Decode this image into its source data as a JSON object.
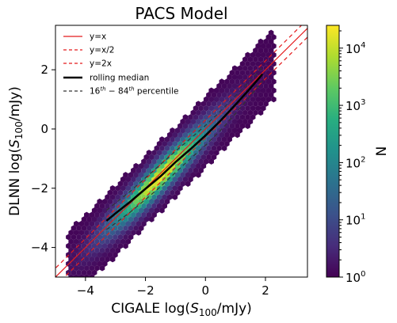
{
  "chart_data": {
    "type": "hexbin",
    "title": "PACS Model",
    "xlabel": "CIGALE log(S100/mJy)",
    "ylabel": "DLNN log(S100/mJy)",
    "xlim": [
      -5.0,
      3.4
    ],
    "ylim": [
      -5.0,
      3.5
    ],
    "x_ticks": [
      -4,
      -2,
      0,
      2
    ],
    "x_tick_labels": [
      "−4",
      "−2",
      "0",
      "2"
    ],
    "y_ticks": [
      -4,
      -2,
      0,
      2
    ],
    "y_tick_labels": [
      "−4",
      "−2",
      "0",
      "2"
    ],
    "grid": false,
    "legend": {
      "location": "upper-left",
      "entries": [
        {
          "label": "y=x",
          "style": "solid",
          "color": "#e41a1c"
        },
        {
          "label": "y=x/2",
          "style": "dashed",
          "color": "#e41a1c"
        },
        {
          "label": "y=2x",
          "style": "dashed",
          "color": "#e41a1c"
        },
        {
          "label": "rolling median",
          "style": "solid-thick",
          "color": "#000000"
        },
        {
          "label": "16th − 84th percentile",
          "style": "dashed",
          "color": "#000000"
        }
      ]
    },
    "reference_lines": [
      {
        "name": "y=x",
        "slope": 1.0,
        "intercept": 0.0
      },
      {
        "name": "y=x/2",
        "slope": 1.0,
        "intercept": -0.30103
      },
      {
        "name": "y=2x",
        "slope": 1.0,
        "intercept": 0.30103
      }
    ],
    "rolling_median": {
      "x": [
        -3.3,
        -3.0,
        -2.5,
        -2.0,
        -1.5,
        -1.0,
        -0.5,
        0.0,
        0.5,
        1.0,
        1.5,
        1.9
      ],
      "y": [
        -3.1,
        -2.85,
        -2.45,
        -2.02,
        -1.6,
        -1.12,
        -0.68,
        -0.22,
        0.28,
        0.82,
        1.38,
        1.85
      ]
    },
    "percentile_16": {
      "x": [
        -3.3,
        -3.0,
        -2.5,
        -2.0,
        -1.5,
        -1.0,
        -0.5,
        0.0,
        0.5,
        1.0,
        1.5,
        1.9
      ],
      "y": [
        -3.4,
        -3.18,
        -2.8,
        -2.38,
        -1.95,
        -1.47,
        -1.0,
        -0.55,
        -0.05,
        0.52,
        1.12,
        1.62
      ]
    },
    "percentile_84": {
      "x": [
        -3.3,
        -3.0,
        -2.5,
        -2.0,
        -1.5,
        -1.0,
        -0.5,
        0.0,
        0.5,
        1.0,
        1.5,
        1.9
      ],
      "y": [
        -2.75,
        -2.5,
        -2.1,
        -1.65,
        -1.2,
        -0.75,
        -0.32,
        0.12,
        0.6,
        1.12,
        1.65,
        2.08
      ]
    },
    "density_model": {
      "ridge_slope": 1.0,
      "ridge_offset": -0.1,
      "peak_x": -1.5,
      "x_spread": 1.15,
      "scatter_sigma": 0.38,
      "x_extent": [
        -4.6,
        2.3
      ],
      "peak_count": 20000,
      "min_count": 1
    },
    "colorbar": {
      "label": "N",
      "scale": "log",
      "range": [
        1,
        25000
      ],
      "colormap": "viridis",
      "ticks": [
        1,
        10,
        100,
        1000,
        10000
      ],
      "tick_base": "10",
      "tick_exponents": [
        "0",
        "1",
        "2",
        "3",
        "4"
      ]
    },
    "colors": {
      "reference_line": "#e41a1c",
      "median_line": "#000000",
      "percentile_line": "#333333"
    }
  }
}
